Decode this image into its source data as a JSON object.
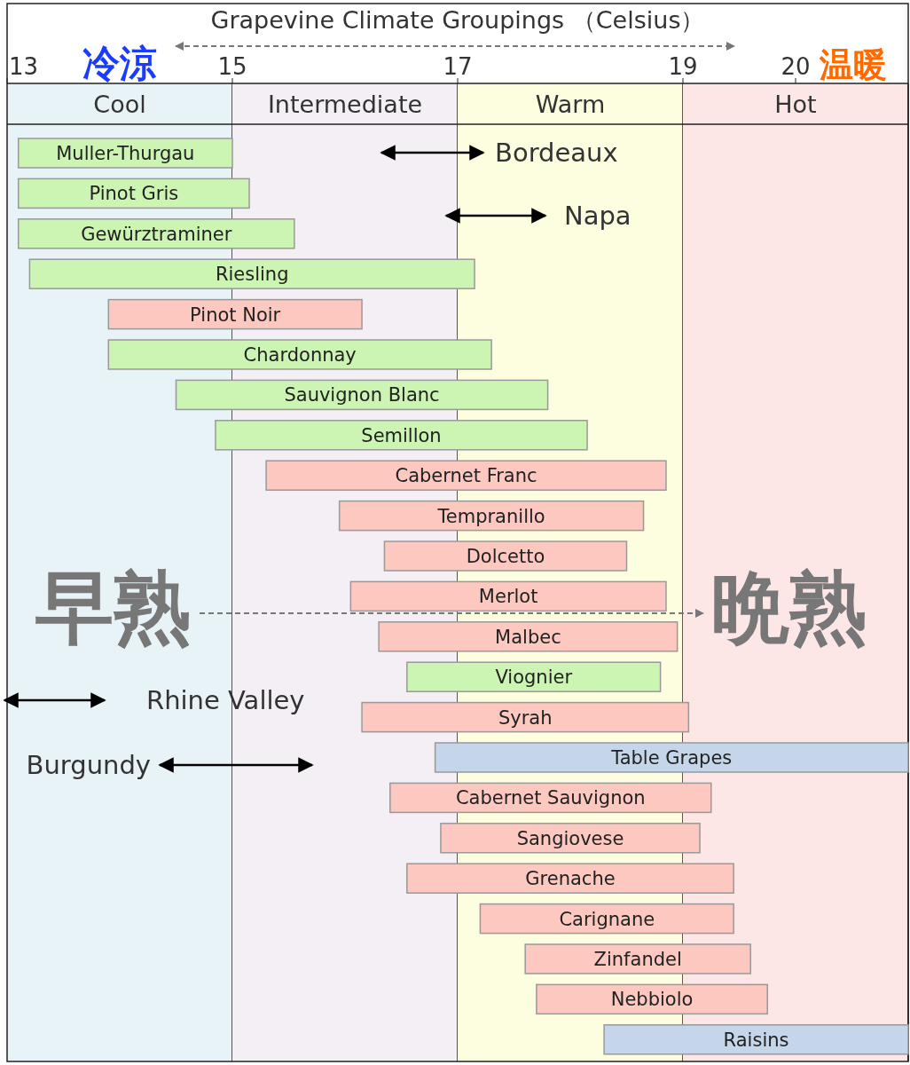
{
  "chart_data": {
    "type": "bar",
    "orientation": "horizontal",
    "title": "Grapevine Climate Groupings （Celsius）",
    "categories": [
      "Muller-Thurgau",
      "Pinot Gris",
      "Gewürztraminer",
      "Riesling",
      "Pinot Noir",
      "Chardonnay",
      "Sauvignon Blanc",
      "Semillon",
      "Cabernet Franc",
      "Tempranillo",
      "Dolcetto",
      "Merlot",
      "Malbec",
      "Viognier",
      "Syrah",
      "Table Grapes",
      "Cabernet Sauvignon",
      "Sangiovese",
      "Grenache",
      "Carignane",
      "Zinfandel",
      "Nebbiolo",
      "Raisins"
    ],
    "base": [
      13.1,
      13.1,
      13.1,
      13.2,
      13.9,
      13.9,
      14.5,
      14.85,
      15.3,
      15.95,
      16.35,
      16.05,
      16.3,
      16.55,
      16.15,
      16.8,
      16.4,
      16.85,
      16.55,
      17.2,
      17.6,
      17.7,
      18.3
    ],
    "values": [
      1.9,
      2.05,
      2.45,
      3.95,
      2.25,
      3.4,
      3.3,
      3.3,
      3.55,
      2.7,
      2.15,
      2.8,
      2.65,
      2.25,
      2.9,
      4.2,
      2.85,
      2.3,
      2.9,
      2.25,
      2.0,
      2.05,
      2.7
    ],
    "colors": [
      "#ccf5b4",
      "#ccf5b4",
      "#ccf5b4",
      "#ccf5b4",
      "#fcc8c0",
      "#ccf5b4",
      "#ccf5b4",
      "#ccf5b4",
      "#fcc8c0",
      "#fcc8c0",
      "#fcc8c0",
      "#fcc8c0",
      "#fcc8c0",
      "#ccf5b4",
      "#fcc8c0",
      "#c6d6ea",
      "#fcc8c0",
      "#fcc8c0",
      "#fcc8c0",
      "#fcc8c0",
      "#fcc8c0",
      "#fcc8c0",
      "#c6d6ea"
    ],
    "xlim": [
      13,
      21
    ],
    "xticks": [
      13,
      15,
      17,
      19,
      20
    ],
    "grid": "x",
    "bands": [
      {
        "axis": "x",
        "from": 13,
        "to": 15,
        "label": "Cool",
        "color": "#e8f3f8"
      },
      {
        "axis": "x",
        "from": 15,
        "to": 17,
        "label": "Intermediate",
        "color": "#f3eff5"
      },
      {
        "axis": "x",
        "from": 17,
        "to": 19,
        "label": "Warm",
        "color": "#fdfde0"
      },
      {
        "axis": "x",
        "from": 19,
        "to": 21,
        "label": "Hot",
        "color": "#fde6e6"
      }
    ],
    "annotations": [
      "Bordeaux",
      "Napa",
      "Rhine Valley",
      "Burgundy",
      "冷涼",
      "温暖",
      "早熟",
      "晩熟"
    ]
  }
}
